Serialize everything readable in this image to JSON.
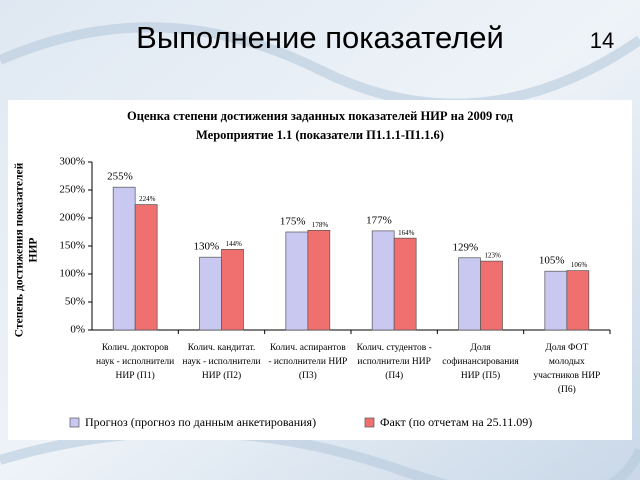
{
  "slide": {
    "title": "Выполнение показателей",
    "page_number": "14"
  },
  "chart_data": {
    "type": "bar",
    "title": "Оценка степени достижения заданных показателей НИР на 2009 год",
    "subtitle": "Мероприятие 1.1 (показатели П1.1.1-П1.1.6)",
    "y_label": [
      "Степень достижения показателей",
      "НИР"
    ],
    "categories": [
      [
        "Колич. докторов",
        "наук - исполнители",
        "НИР (П1)"
      ],
      [
        "Колич. кандитат.",
        "наук - исполнители",
        "НИР (П2)"
      ],
      [
        "Колич. аспирантов",
        "- исполнители НИР",
        "(П3)"
      ],
      [
        "Колич. студентов -",
        "исполнители НИР",
        "(П4)"
      ],
      [
        "Доля",
        "софинансирования",
        "НИР (П5)"
      ],
      [
        "Доля ФОТ",
        "молодых",
        "участников НИР",
        "(П6)"
      ]
    ],
    "series": [
      {
        "name": "Прогноз (прогноз по данным анкетирования)",
        "color": "#c8c8f0",
        "values": [
          255,
          130,
          175,
          177,
          129,
          105
        ],
        "value_labels": [
          "255%",
          "130%",
          "175%",
          "177%",
          "129%",
          "105%"
        ]
      },
      {
        "name": "Факт (по отчетам на 25.11.09)",
        "color": "#f07070",
        "values": [
          224,
          144,
          178,
          164,
          123,
          106
        ],
        "value_labels": [
          "224%",
          "144%",
          "178%",
          "164%",
          "123%",
          "106%"
        ]
      }
    ],
    "ylim": [
      0,
      300
    ],
    "yticks": [
      {
        "value": 0,
        "label": "0%"
      },
      {
        "value": 50,
        "label": "50%"
      },
      {
        "value": 100,
        "label": "100%"
      },
      {
        "value": 150,
        "label": "150%"
      },
      {
        "value": 200,
        "label": "200%"
      },
      {
        "value": 250,
        "label": "250%"
      },
      {
        "value": 300,
        "label": "300%"
      }
    ],
    "legend": "bottom"
  }
}
